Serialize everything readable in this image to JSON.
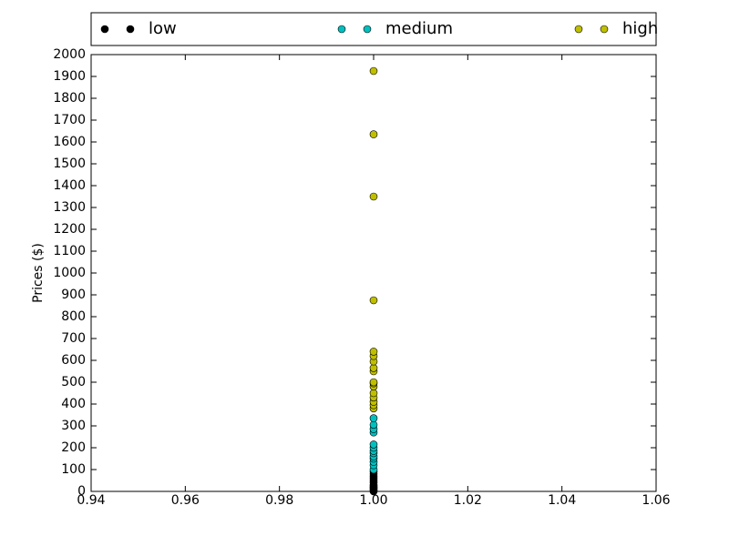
{
  "chart_data": {
    "type": "scatter",
    "ylabel": "Prices ($)",
    "xlim": [
      0.94,
      1.06
    ],
    "xticks": [
      0.94,
      0.96,
      0.98,
      {
        "value": 1,
        "label": "1.00"
      },
      1.02,
      1.04,
      1.06
    ],
    "ylim": [
      0,
      2000
    ],
    "yticks": [
      0,
      100,
      200,
      300,
      400,
      500,
      600,
      700,
      800,
      900,
      1000,
      1100,
      1200,
      1300,
      1400,
      1500,
      1600,
      1700,
      1800,
      1900,
      2000
    ],
    "legend": "top",
    "series": [
      {
        "name": "low",
        "color": "#000000",
        "x": [
          1,
          1,
          1,
          1,
          1,
          1,
          1,
          1,
          1,
          1,
          1,
          1,
          1
        ],
        "values": [
          0,
          5,
          10,
          15,
          20,
          25,
          30,
          40,
          50,
          60,
          70,
          80,
          90
        ]
      },
      {
        "name": "medium",
        "color": "#00bfbf",
        "x": [
          1,
          1,
          1,
          1,
          1,
          1,
          1,
          1,
          1,
          1,
          1,
          1,
          1
        ],
        "values": [
          100,
          120,
          135,
          150,
          160,
          175,
          185,
          200,
          215,
          270,
          285,
          305,
          335
        ]
      },
      {
        "name": "high",
        "color": "#bfbf00",
        "x": [
          1,
          1,
          1,
          1,
          1,
          1,
          1,
          1,
          1,
          1,
          1,
          1,
          1,
          1,
          1,
          1,
          1
        ],
        "values": [
          380,
          395,
          410,
          430,
          450,
          480,
          495,
          500,
          550,
          565,
          595,
          620,
          640,
          875,
          1350,
          1635,
          1925
        ]
      }
    ]
  }
}
